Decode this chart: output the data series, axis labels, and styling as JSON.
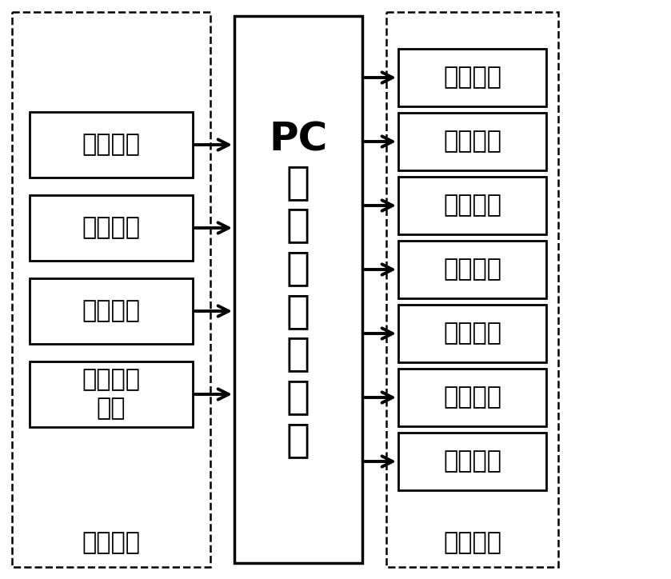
{
  "input_labels": [
    "植株类型",
    "疏密程度",
    "叶片大小",
    "植株高矮\n程度"
  ],
  "input_caption": "输入参数",
  "center_label": "PC\n机\n参\n数\n计\n算\n软\n件",
  "output_labels": [
    "行进速度",
    "流量大小",
    "风力大小",
    "俯仰角度",
    "俯仰速度",
    "回转角度",
    "回转速度"
  ],
  "output_caption": "输出参数",
  "bg_color": "#ffffff",
  "box_color": "#000000",
  "text_color": "#000000",
  "arrow_color": "#000000"
}
